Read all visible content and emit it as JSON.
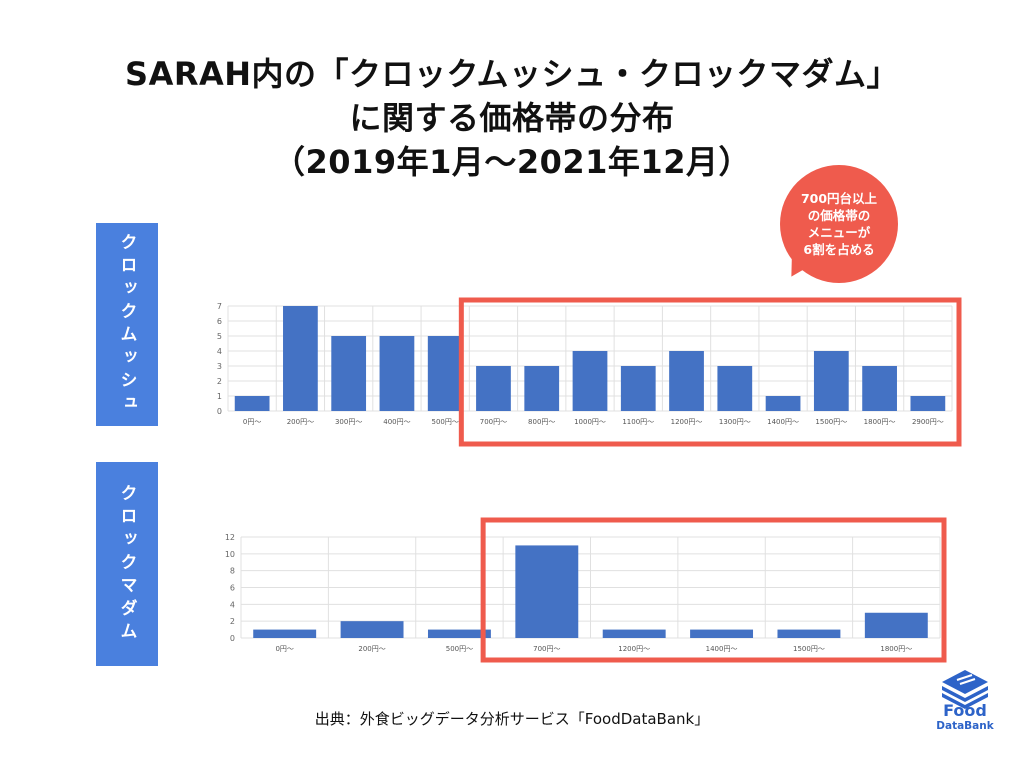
{
  "title": {
    "line1": "SARAH内の「クロックムッシュ・クロックマダム」",
    "line2": "に関する価格帯の分布",
    "line3": "（2019年1月〜2021年12月）"
  },
  "callout": {
    "text": "700円台以上\nの価格帯の\nメニューが\n6割を占める"
  },
  "colors": {
    "bar": "#4472c4",
    "highlight": "#ef5b4d",
    "label_bg": "#4a80de",
    "grid": "#e0e0e0"
  },
  "chart_data": [
    {
      "type": "bar",
      "label": "クロックムッシュ",
      "categories": [
        "0円〜",
        "200円〜",
        "300円〜",
        "400円〜",
        "500円〜",
        "700円〜",
        "800円〜",
        "1000円〜",
        "1100円〜",
        "1200円〜",
        "1300円〜",
        "1400円〜",
        "1500円〜",
        "1800円〜",
        "2900円〜"
      ],
      "values": [
        1,
        7,
        5,
        5,
        5,
        3,
        3,
        4,
        3,
        4,
        3,
        1,
        4,
        3,
        1
      ],
      "ylim": [
        0,
        7
      ],
      "yticks": [
        0,
        1,
        2,
        3,
        4,
        5,
        6,
        7
      ],
      "highlight_from_index": 5,
      "grid": true
    },
    {
      "type": "bar",
      "label": "クロックマダム",
      "categories": [
        "0円〜",
        "200円〜",
        "500円〜",
        "700円〜",
        "1200円〜",
        "1400円〜",
        "1500円〜",
        "1800円〜"
      ],
      "values": [
        1,
        2,
        1,
        11,
        1,
        1,
        1,
        3
      ],
      "ylim": [
        0,
        12
      ],
      "yticks": [
        0,
        2,
        4,
        6,
        8,
        10,
        12
      ],
      "highlight_from_index": 3,
      "grid": true
    }
  ],
  "source": "出典：外食ビッグデータ分析サービス「FoodDataBank」",
  "logo": {
    "icon": "food-databank-logo-icon",
    "line1": "Food",
    "line2": "DataBank"
  }
}
